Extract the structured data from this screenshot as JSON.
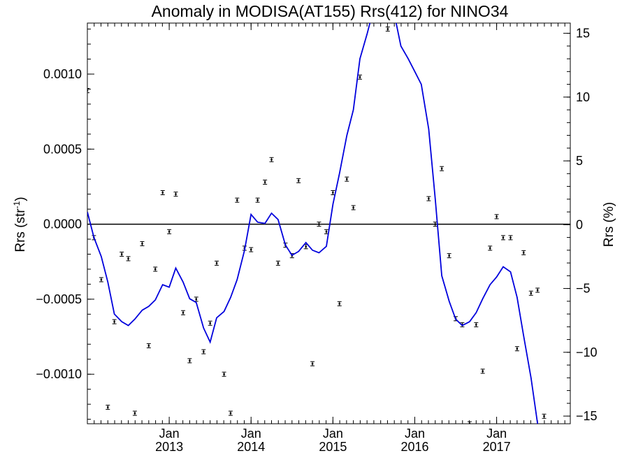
{
  "chart_data": {
    "type": "scatter",
    "title": "Anomaly in MODISA(AT155) Rrs(412) for NINO34",
    "ylabel": "Rrs (str",
    "ylabel_sup": "-1",
    "ylabel_tail": ")",
    "y2label": "Rrs (%)",
    "xlim": [
      2012.0,
      2017.9
    ],
    "ylim": [
      -0.00133,
      0.00134
    ],
    "y2lim": [
      -15.6,
      15.8
    ],
    "grid": false,
    "zero_line": true,
    "x_ticks": [
      {
        "value": 2013.0,
        "label": "Jan",
        "year": "2013"
      },
      {
        "value": 2014.0,
        "label": "Jan",
        "year": "2014"
      },
      {
        "value": 2015.0,
        "label": "Jan",
        "year": "2015"
      },
      {
        "value": 2016.0,
        "label": "Jan",
        "year": "2016"
      },
      {
        "value": 2017.0,
        "label": "Jan",
        "year": "2017"
      }
    ],
    "y_ticks": [
      {
        "value": 0.001,
        "label": "0.0010"
      },
      {
        "value": 0.0005,
        "label": "0.0005"
      },
      {
        "value": 0.0,
        "label": "0.0000"
      },
      {
        "value": -0.0005,
        "label": "−0.0005"
      },
      {
        "value": -0.001,
        "label": "−0.0010"
      }
    ],
    "y2_ticks": [
      {
        "value": 15,
        "label": "15"
      },
      {
        "value": 10,
        "label": "10"
      },
      {
        "value": 5,
        "label": "5"
      },
      {
        "value": 0,
        "label": "0"
      },
      {
        "value": -5,
        "label": "−5"
      },
      {
        "value": -10,
        "label": "−10"
      },
      {
        "value": -15,
        "label": "−15"
      }
    ],
    "series": [
      {
        "style": "points-with-errorbars",
        "color": "#000000",
        "x": [
          2012.0,
          2012.08,
          2012.17,
          2012.25,
          2012.33,
          2012.42,
          2012.5,
          2012.58,
          2012.67,
          2012.75,
          2012.83,
          2012.92,
          2013.0,
          2013.08,
          2013.17,
          2013.25,
          2013.33,
          2013.42,
          2013.5,
          2013.58,
          2013.67,
          2013.75,
          2013.83,
          2013.92,
          2014.0,
          2014.08,
          2014.17,
          2014.25,
          2014.33,
          2014.42,
          2014.5,
          2014.58,
          2014.67,
          2014.75,
          2014.83,
          2014.92,
          2015.0,
          2015.08,
          2015.17,
          2015.25,
          2015.33,
          2015.42,
          2015.5,
          2015.58,
          2015.67,
          2015.75,
          2015.83,
          2015.92,
          2016.0,
          2016.08,
          2016.17,
          2016.25,
          2016.33,
          2016.42,
          2016.5,
          2016.58,
          2016.67,
          2016.75,
          2016.83,
          2016.92,
          2017.0,
          2017.08,
          2017.17,
          2017.25,
          2017.33,
          2017.42,
          2017.5,
          2017.58
        ],
        "y": [
          0.00089,
          -9e-05,
          -0.00037,
          -0.00122,
          -0.00065,
          -0.0002,
          -0.00023,
          -0.00126,
          -0.00013,
          -0.00081,
          -0.0003,
          0.00021,
          -5e-05,
          0.0002,
          -0.00059,
          -0.00091,
          -0.0005,
          -0.00085,
          -0.00066,
          -0.00026,
          -0.001,
          -0.00126,
          0.00016,
          -0.00016,
          -0.00017,
          0.00016,
          0.00028,
          0.00043,
          -0.00026,
          -0.00014,
          -0.00021,
          0.00029,
          -0.00015,
          -0.00093,
          0.0,
          -5e-05,
          0.00021,
          -0.00053,
          0.0003,
          0.00011,
          0.00098,
          null,
          null,
          null,
          0.0013,
          null,
          null,
          null,
          null,
          null,
          0.00017,
          0.0,
          0.00037,
          -0.00021,
          -0.00063,
          -0.00067,
          -0.00133,
          -0.00067,
          -0.00098,
          -0.00016,
          5e-05,
          -9e-05,
          -9e-05,
          -0.00083,
          -0.00019,
          -0.00046,
          -0.00044,
          -0.00128
        ]
      },
      {
        "style": "line",
        "axis": "right",
        "color": "#0000dd",
        "x": [
          2012.0,
          2012.08,
          2012.17,
          2012.25,
          2012.33,
          2012.42,
          2012.5,
          2012.58,
          2012.67,
          2012.75,
          2012.83,
          2012.92,
          2013.0,
          2013.08,
          2013.17,
          2013.25,
          2013.33,
          2013.42,
          2013.5,
          2013.58,
          2013.67,
          2013.75,
          2013.83,
          2013.92,
          2014.0,
          2014.08,
          2014.17,
          2014.25,
          2014.33,
          2014.42,
          2014.5,
          2014.58,
          2014.67,
          2014.75,
          2014.83,
          2014.92,
          2015.0,
          2015.08,
          2015.17,
          2015.25,
          2015.33,
          2015.42,
          2015.5,
          2015.58,
          2015.67,
          2015.75,
          2015.83,
          2015.92,
          2016.0,
          2016.08,
          2016.17,
          2016.25,
          2016.33,
          2016.42,
          2016.5,
          2016.58,
          2016.67,
          2016.75,
          2016.83,
          2016.92,
          2017.0,
          2017.08,
          2017.17,
          2017.25,
          2017.33,
          2017.42,
          2017.5,
          2017.58
        ],
        "y": [
          1.0,
          -1.0,
          -2.5,
          -4.5,
          -7.0,
          -7.6,
          -7.9,
          -7.4,
          -6.7,
          -6.4,
          -5.9,
          -4.7,
          -4.9,
          -3.4,
          -4.5,
          -5.8,
          -6.1,
          -8.1,
          -9.2,
          -7.3,
          -6.8,
          -5.7,
          -4.3,
          -2.0,
          0.8,
          0.2,
          0.1,
          0.9,
          0.4,
          -1.6,
          -2.4,
          -2.1,
          -1.4,
          -2.0,
          -2.2,
          -1.7,
          1.6,
          4.0,
          7.0,
          9.0,
          13.0,
          15.0,
          17.0,
          17.8,
          17.5,
          16.5,
          14.0,
          13.0,
          12.0,
          11.0,
          7.5,
          2.0,
          -4.0,
          -6.0,
          -7.4,
          -7.9,
          -7.6,
          -6.9,
          -5.8,
          -4.7,
          -4.1,
          -3.3,
          -3.7,
          -5.7,
          -8.7,
          -12.0,
          -15.6,
          -18.0
        ]
      }
    ]
  }
}
